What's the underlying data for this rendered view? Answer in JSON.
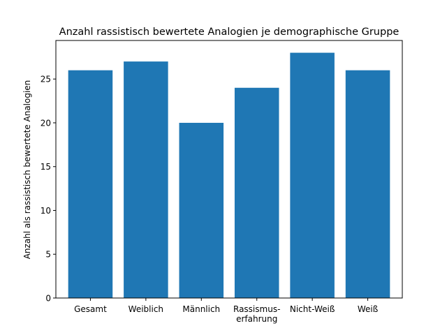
{
  "chart_data": {
    "type": "bar",
    "title": "Anzahl rassistisch bewertete Analogien je demographische Gruppe",
    "xlabel": "",
    "ylabel": "Anzahl als rassistisch bewertete Analogien",
    "categories": [
      [
        "Gesamt"
      ],
      [
        "Weiblich"
      ],
      [
        "Männlich"
      ],
      [
        "Rassismus-",
        "erfahrung"
      ],
      [
        "Nicht-Weiß"
      ],
      [
        "Weiß"
      ]
    ],
    "values": [
      26,
      27,
      20,
      24,
      28,
      26
    ],
    "ylim": [
      0,
      29.4
    ],
    "yticks": [
      0,
      5,
      10,
      15,
      20,
      25
    ],
    "grid": false,
    "legend": "none",
    "colors": {
      "bar": "#1f77b4",
      "axis": "#000000",
      "background": "#ffffff"
    }
  }
}
